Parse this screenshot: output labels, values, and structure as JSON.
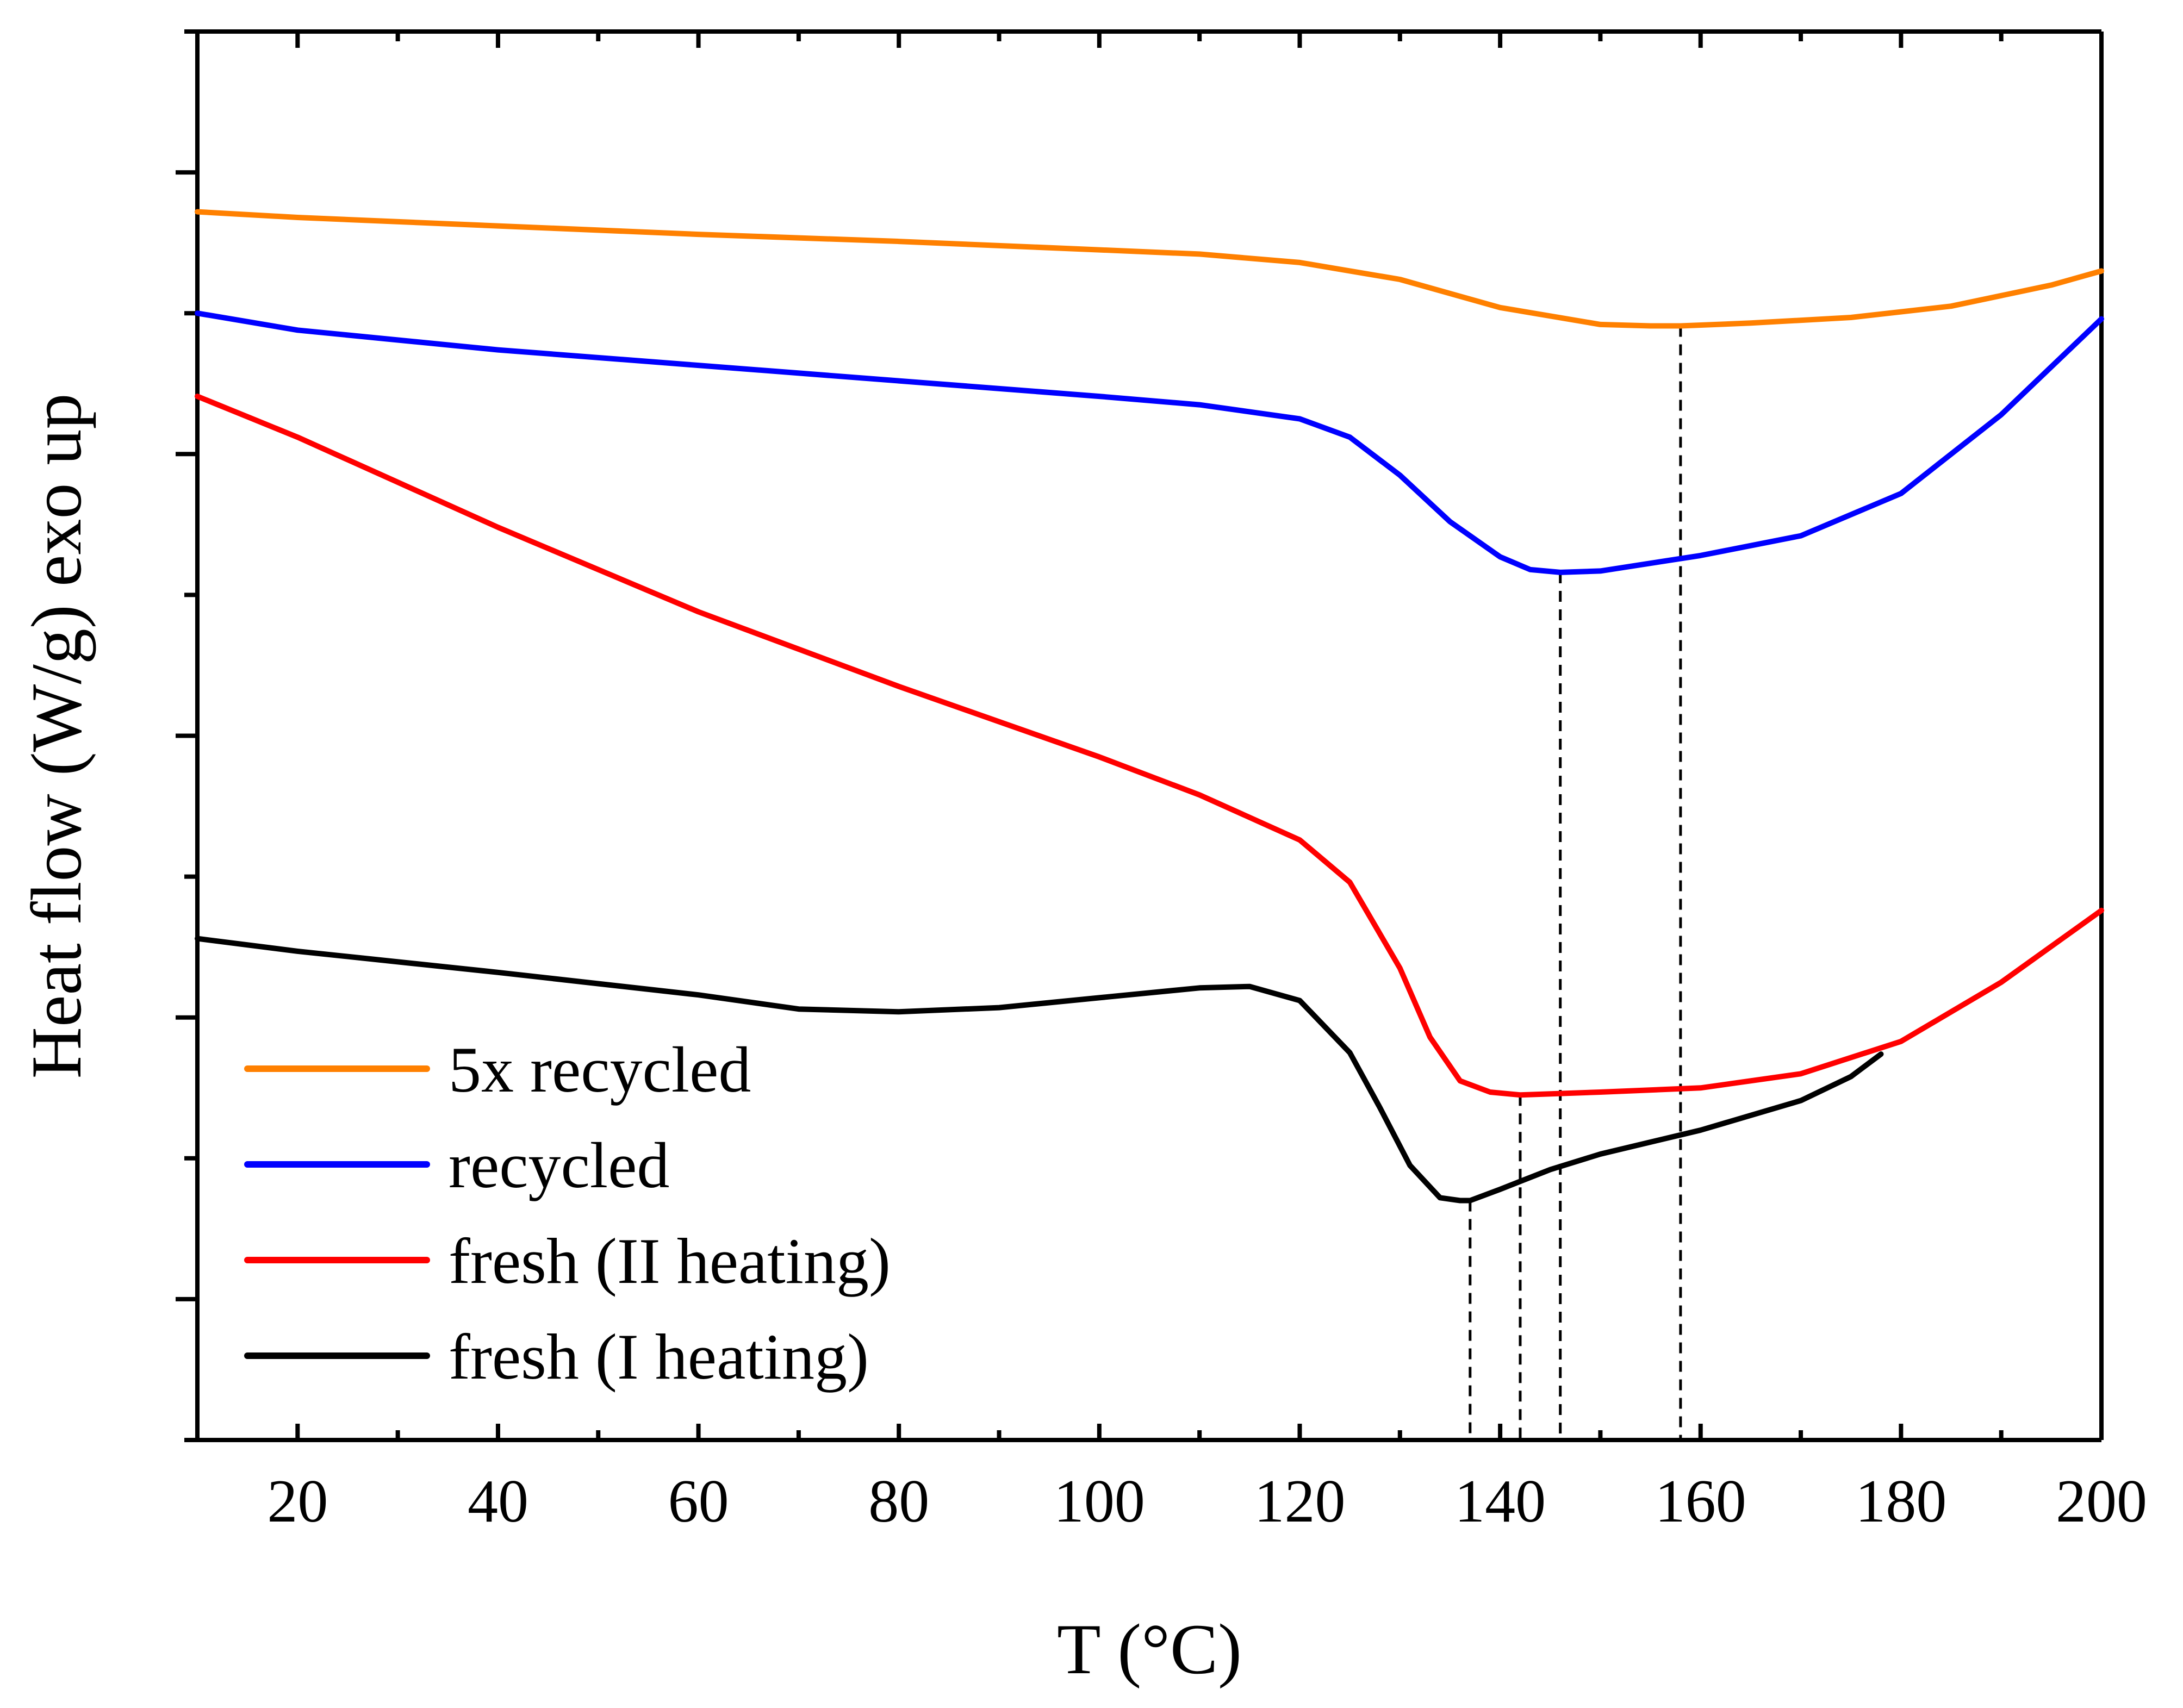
{
  "chart_data": {
    "type": "line",
    "title": "",
    "xlabel": "T (°C)",
    "ylabel": "Heat flow (W/g) exo up",
    "xlim": [
      10,
      200
    ],
    "ylim": [
      0,
      10
    ],
    "x_ticks": [
      20,
      40,
      60,
      80,
      100,
      120,
      140,
      160,
      180,
      200
    ],
    "y_ticks": [
      1,
      3,
      5,
      7,
      9
    ],
    "y_tick_labels_shown": false,
    "grid": false,
    "legend_position": "bottom-left",
    "series": [
      {
        "name": "5x recycled",
        "color": "#ff8000",
        "x": [
          10,
          20,
          40,
          60,
          80,
          100,
          110,
          120,
          130,
          140,
          150,
          155,
          158,
          165,
          175,
          185,
          195,
          200
        ],
        "y": [
          8.72,
          8.68,
          8.62,
          8.56,
          8.51,
          8.45,
          8.42,
          8.36,
          8.24,
          8.04,
          7.92,
          7.91,
          7.91,
          7.93,
          7.97,
          8.05,
          8.2,
          8.3
        ]
      },
      {
        "name": "recycled",
        "color": "#0000ff",
        "x": [
          10,
          20,
          40,
          60,
          80,
          100,
          110,
          120,
          125,
          130,
          135,
          140,
          143,
          146,
          150,
          160,
          170,
          180,
          190,
          200
        ],
        "y": [
          8.0,
          7.88,
          7.74,
          7.63,
          7.52,
          7.41,
          7.35,
          7.25,
          7.12,
          6.85,
          6.52,
          6.27,
          6.18,
          6.16,
          6.17,
          6.28,
          6.42,
          6.72,
          7.28,
          7.96
        ]
      },
      {
        "name": "fresh (II heating)",
        "color": "#ff0000",
        "x": [
          10,
          20,
          40,
          60,
          80,
          100,
          110,
          120,
          125,
          130,
          133,
          136,
          139,
          142,
          146,
          150,
          160,
          170,
          180,
          190,
          200
        ],
        "y": [
          7.41,
          7.12,
          6.48,
          5.88,
          5.35,
          4.85,
          4.58,
          4.26,
          3.96,
          3.35,
          2.86,
          2.55,
          2.47,
          2.45,
          2.46,
          2.47,
          2.5,
          2.6,
          2.83,
          3.25,
          3.76
        ]
      },
      {
        "name": "fresh (I heating)",
        "color": "#000000",
        "x": [
          10,
          20,
          40,
          60,
          70,
          80,
          90,
          100,
          110,
          115,
          120,
          125,
          128,
          131,
          134,
          136,
          137,
          140,
          145,
          150,
          160,
          170,
          175,
          178
        ],
        "y": [
          3.56,
          3.47,
          3.32,
          3.16,
          3.06,
          3.04,
          3.07,
          3.14,
          3.21,
          3.22,
          3.12,
          2.75,
          2.36,
          1.95,
          1.72,
          1.7,
          1.7,
          1.78,
          1.92,
          2.03,
          2.2,
          2.41,
          2.58,
          2.74
        ]
      }
    ],
    "annotations": [
      {
        "type": "vertical-dashed",
        "x": 137,
        "y_top": 1.7,
        "series": "fresh (I heating)"
      },
      {
        "type": "vertical-dashed",
        "x": 142,
        "y_top": 2.45,
        "series": "fresh (II heating)"
      },
      {
        "type": "vertical-dashed",
        "x": 146,
        "y_top": 6.16,
        "series": "recycled"
      },
      {
        "type": "vertical-dashed",
        "x": 158,
        "y_top": 7.91,
        "series": "5x recycled"
      }
    ]
  }
}
